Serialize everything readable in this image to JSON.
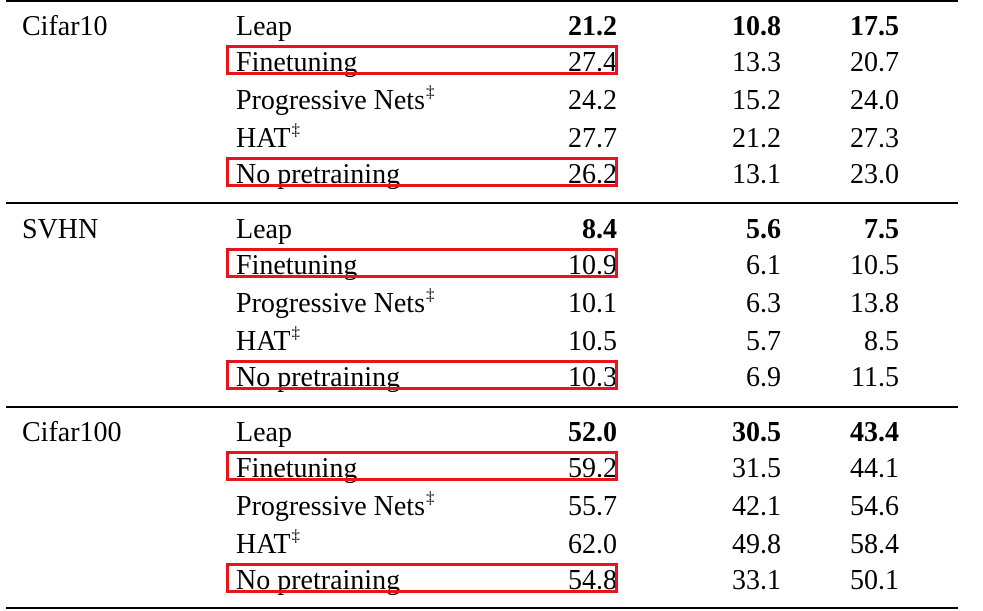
{
  "table": {
    "sections": [
      {
        "dataset": "Cifar10",
        "rows": [
          {
            "method": "Leap",
            "mark": "",
            "v1": "21.2",
            "v2": "10.8",
            "v3": "17.5",
            "bold": true,
            "highlight": false
          },
          {
            "method": "Finetuning",
            "mark": "",
            "v1": "27.4",
            "v2": "13.3",
            "v3": "20.7",
            "bold": false,
            "highlight": true
          },
          {
            "method": "Progressive Nets",
            "mark": "‡",
            "v1": "24.2",
            "v2": "15.2",
            "v3": "24.0",
            "bold": false,
            "highlight": false
          },
          {
            "method": "HAT",
            "mark": "‡",
            "v1": "27.7",
            "v2": "21.2",
            "v3": "27.3",
            "bold": false,
            "highlight": false
          },
          {
            "method": "No pretraining",
            "mark": "",
            "v1": "26.2",
            "v2": "13.1",
            "v3": "23.0",
            "bold": false,
            "highlight": true
          }
        ]
      },
      {
        "dataset": "SVHN",
        "rows": [
          {
            "method": "Leap",
            "mark": "",
            "v1": "8.4",
            "v2": "5.6",
            "v3": "7.5",
            "bold": true,
            "highlight": false
          },
          {
            "method": "Finetuning",
            "mark": "",
            "v1": "10.9",
            "v2": "6.1",
            "v3": "10.5",
            "bold": false,
            "highlight": true
          },
          {
            "method": "Progressive Nets",
            "mark": "‡",
            "v1": "10.1",
            "v2": "6.3",
            "v3": "13.8",
            "bold": false,
            "highlight": false
          },
          {
            "method": "HAT",
            "mark": "‡",
            "v1": "10.5",
            "v2": "5.7",
            "v3": "8.5",
            "bold": false,
            "highlight": false
          },
          {
            "method": "No pretraining",
            "mark": "",
            "v1": "10.3",
            "v2": "6.9",
            "v3": "11.5",
            "bold": false,
            "highlight": true
          }
        ]
      },
      {
        "dataset": "Cifar100",
        "rows": [
          {
            "method": "Leap",
            "mark": "",
            "v1": "52.0",
            "v2": "30.5",
            "v3": "43.4",
            "bold": true,
            "highlight": false
          },
          {
            "method": "Finetuning",
            "mark": "",
            "v1": "59.2",
            "v2": "31.5",
            "v3": "44.1",
            "bold": false,
            "highlight": true
          },
          {
            "method": "Progressive Nets",
            "mark": "‡",
            "v1": "55.7",
            "v2": "42.1",
            "v3": "54.6",
            "bold": false,
            "highlight": false
          },
          {
            "method": "HAT",
            "mark": "‡",
            "v1": "62.0",
            "v2": "49.8",
            "v3": "58.4",
            "bold": false,
            "highlight": false
          },
          {
            "method": "No pretraining",
            "mark": "",
            "v1": "54.8",
            "v2": "33.1",
            "v3": "50.1",
            "bold": false,
            "highlight": true
          }
        ]
      }
    ],
    "highlight_color": "#e8141b"
  }
}
